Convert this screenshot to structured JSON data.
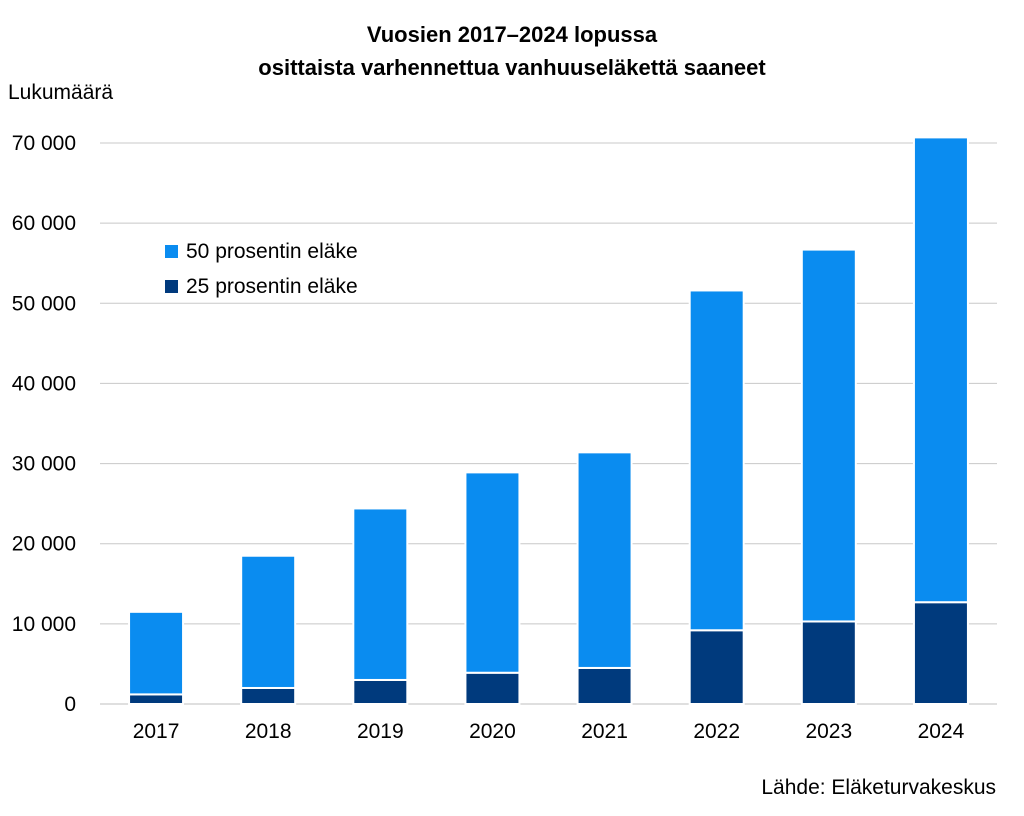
{
  "chart_data": {
    "type": "bar",
    "stacked": true,
    "title_lines": [
      "Vuosien 2017–2024 lopussa",
      "osittaista varhennettua vanhuuseläkettä saaneet"
    ],
    "ylabel": "Lukumäärä",
    "xlabel": "",
    "source": "Lähde: Eläketurvakeskus",
    "categories": [
      "2017",
      "2018",
      "2019",
      "2020",
      "2021",
      "2022",
      "2023",
      "2024"
    ],
    "ylim": [
      0,
      70000
    ],
    "yticks": [
      0,
      10000,
      20000,
      30000,
      40000,
      50000,
      60000,
      70000
    ],
    "ytick_labels": [
      "0",
      "10 000",
      "20 000",
      "30 000",
      "40 000",
      "50 000",
      "60 000",
      "70 000"
    ],
    "grid": true,
    "legend_position": "upper-left",
    "series": [
      {
        "name": "25 prosentin eläke",
        "color": "#003A7D",
        "values": [
          1200,
          2000,
          3000,
          3900,
          4500,
          9200,
          10300,
          12700
        ]
      },
      {
        "name": "50 prosentin eläke",
        "color": "#0A8CF0",
        "values": [
          10300,
          16500,
          21400,
          25000,
          26900,
          42400,
          46400,
          58000
        ]
      }
    ],
    "legend_order": [
      1,
      0
    ]
  }
}
